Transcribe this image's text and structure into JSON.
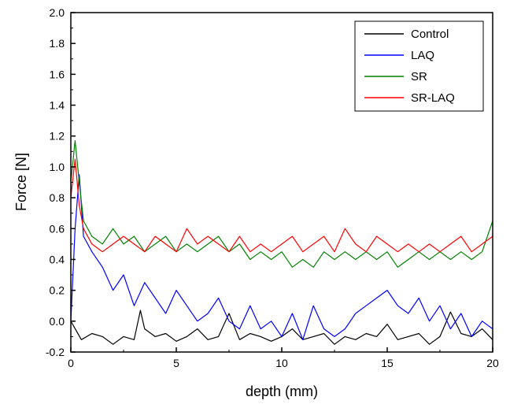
{
  "chart_data": {
    "type": "line",
    "title": "",
    "xlabel": "depth (mm)",
    "ylabel": "Force [N]",
    "xlim": [
      0,
      20
    ],
    "ylim": [
      -0.2,
      2.0
    ],
    "x_ticks": [
      0,
      5,
      10,
      15,
      20
    ],
    "x_tick_labels": [
      "0",
      "5",
      "10",
      "15",
      "20"
    ],
    "y_ticks": [
      -0.2,
      0.0,
      0.2,
      0.4,
      0.6,
      0.8,
      1.0,
      1.2,
      1.4,
      1.6,
      1.8,
      2.0
    ],
    "y_tick_labels": [
      "-0.2",
      "0.0",
      "0.2",
      "0.4",
      "0.6",
      "0.8",
      "1.0",
      "1.2",
      "1.4",
      "1.6",
      "1.8",
      "2.0"
    ],
    "grid": false,
    "legend_position": "top-right",
    "series": [
      {
        "name": "Control",
        "color": "#000000",
        "x": [
          0,
          0.5,
          1,
          1.5,
          2,
          2.5,
          3,
          3.3,
          3.5,
          4,
          4.5,
          5,
          5.5,
          6,
          6.5,
          7,
          7.5,
          8,
          8.5,
          9,
          9.5,
          10,
          10.5,
          11,
          11.5,
          12,
          12.5,
          13,
          13.5,
          14,
          14.5,
          15,
          15.5,
          16,
          16.5,
          17,
          17.5,
          18,
          18.5,
          19,
          19.5,
          20
        ],
        "values": [
          0.0,
          -0.12,
          -0.08,
          -0.1,
          -0.15,
          -0.1,
          -0.12,
          0.07,
          -0.05,
          -0.1,
          -0.08,
          -0.13,
          -0.1,
          -0.05,
          -0.12,
          -0.1,
          0.05,
          -0.12,
          -0.08,
          -0.1,
          -0.13,
          -0.1,
          -0.05,
          -0.12,
          -0.1,
          -0.08,
          -0.15,
          -0.1,
          -0.12,
          -0.08,
          -0.1,
          -0.02,
          -0.12,
          -0.1,
          -0.08,
          -0.15,
          -0.1,
          0.06,
          -0.08,
          -0.1,
          -0.05,
          -0.12
        ]
      },
      {
        "name": "LAQ",
        "color": "#0000ff",
        "x": [
          0,
          0.2,
          0.4,
          0.6,
          1,
          1.5,
          2,
          2.5,
          3,
          3.5,
          4,
          4.5,
          5,
          5.5,
          6,
          6.5,
          7,
          7.5,
          8,
          8.5,
          9,
          9.5,
          10,
          10.5,
          11,
          11.5,
          12,
          12.5,
          13,
          13.5,
          14,
          14.5,
          15,
          15.5,
          16,
          16.5,
          17,
          17.5,
          18,
          18.5,
          19,
          19.5,
          20
        ],
        "values": [
          0.0,
          0.6,
          0.95,
          0.55,
          0.45,
          0.35,
          0.2,
          0.3,
          0.1,
          0.25,
          0.15,
          0.05,
          0.2,
          0.1,
          0.0,
          0.05,
          0.15,
          0.0,
          -0.05,
          0.1,
          -0.05,
          0.0,
          -0.1,
          0.05,
          -0.12,
          0.1,
          -0.05,
          -0.1,
          -0.05,
          0.05,
          0.1,
          0.15,
          0.2,
          0.1,
          0.05,
          0.15,
          0.0,
          0.1,
          -0.05,
          0.05,
          -0.1,
          0.0,
          -0.05
        ]
      },
      {
        "name": "SR",
        "color": "#008000",
        "x": [
          0,
          0.2,
          0.4,
          0.6,
          1,
          1.5,
          2,
          2.5,
          3,
          3.5,
          4,
          4.5,
          5,
          5.5,
          6,
          6.5,
          7,
          7.5,
          8,
          8.5,
          9,
          9.5,
          10,
          10.5,
          11,
          11.5,
          12,
          12.5,
          13,
          13.5,
          14,
          14.5,
          15,
          15.5,
          16,
          16.5,
          17,
          17.5,
          18,
          18.5,
          19,
          19.5,
          20
        ],
        "values": [
          0.9,
          1.17,
          0.9,
          0.65,
          0.55,
          0.5,
          0.6,
          0.5,
          0.55,
          0.45,
          0.5,
          0.55,
          0.45,
          0.5,
          0.45,
          0.5,
          0.55,
          0.45,
          0.5,
          0.4,
          0.45,
          0.4,
          0.45,
          0.35,
          0.4,
          0.35,
          0.45,
          0.4,
          0.45,
          0.4,
          0.45,
          0.4,
          0.45,
          0.35,
          0.4,
          0.45,
          0.4,
          0.45,
          0.4,
          0.45,
          0.4,
          0.45,
          0.65
        ]
      },
      {
        "name": "SR-LAQ",
        "color": "#ff0000",
        "x": [
          0,
          0.2,
          0.4,
          0.6,
          1,
          1.5,
          2,
          2.5,
          3,
          3.5,
          4,
          4.5,
          5,
          5.5,
          6,
          6.5,
          7,
          7.5,
          8,
          8.5,
          9,
          9.5,
          10,
          10.5,
          11,
          11.5,
          12,
          12.5,
          13,
          13.5,
          14,
          14.5,
          15,
          15.5,
          16,
          16.5,
          17,
          17.5,
          18,
          18.5,
          19,
          19.5,
          20
        ],
        "values": [
          0.8,
          1.05,
          0.75,
          0.6,
          0.5,
          0.45,
          0.5,
          0.55,
          0.5,
          0.45,
          0.55,
          0.5,
          0.45,
          0.6,
          0.5,
          0.55,
          0.5,
          0.45,
          0.55,
          0.45,
          0.5,
          0.45,
          0.5,
          0.55,
          0.45,
          0.5,
          0.55,
          0.45,
          0.6,
          0.5,
          0.45,
          0.55,
          0.5,
          0.45,
          0.5,
          0.45,
          0.5,
          0.45,
          0.5,
          0.55,
          0.45,
          0.5,
          0.55
        ]
      }
    ]
  }
}
